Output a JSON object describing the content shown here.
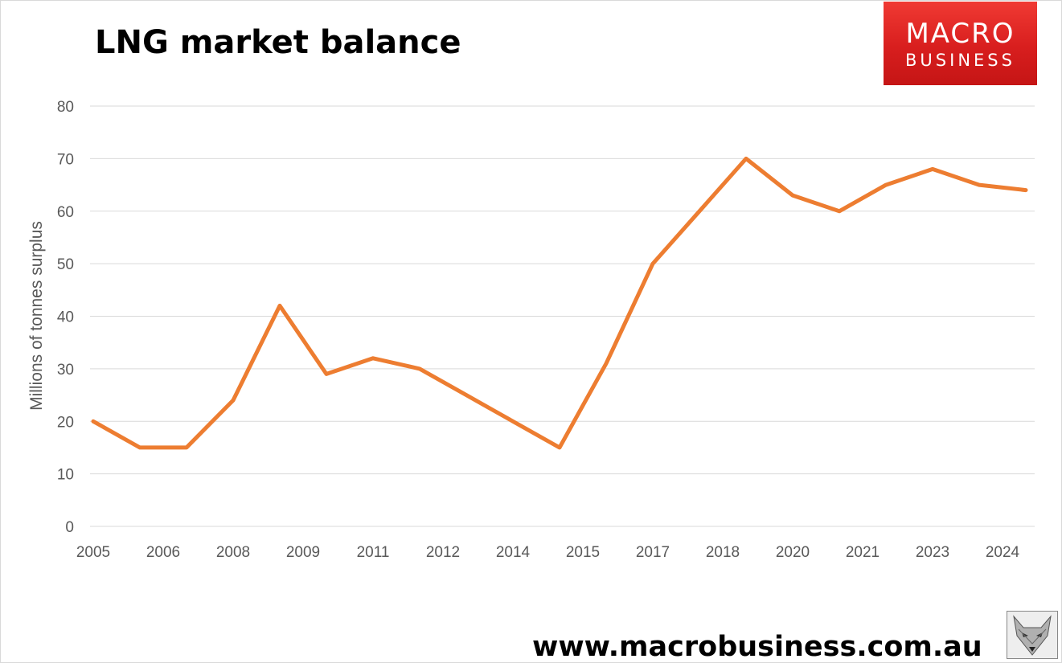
{
  "title": "LNG market balance",
  "logo": {
    "line1": "MACRO",
    "line2": "BUSINESS"
  },
  "footer_url": "www.macrobusiness.com.au",
  "colors": {
    "line": "#ED7D31",
    "grid": "#d9d9d9",
    "axis_text": "#595959",
    "logo_red": "#e02424"
  },
  "fox_image": "fox-logo-icon",
  "chart_data": {
    "type": "line",
    "title": "LNG market balance",
    "xlabel": "",
    "ylabel": "Millions of tonnes surplus",
    "ylim": [
      0,
      80
    ],
    "yticks": [
      0,
      10,
      20,
      30,
      40,
      50,
      60,
      70,
      80
    ],
    "grid": true,
    "legend": "none",
    "x_tick_labels": [
      "2005",
      "2006",
      "2008",
      "2009",
      "2011",
      "2012",
      "2014",
      "2015",
      "2017",
      "2018",
      "2020",
      "2021",
      "2023",
      "2024"
    ],
    "series": [
      {
        "values": [
          20,
          15,
          15,
          24,
          42,
          29,
          32,
          30,
          25,
          20,
          15,
          31,
          50,
          60,
          70,
          63,
          60,
          65,
          68,
          65,
          64
        ]
      }
    ]
  }
}
